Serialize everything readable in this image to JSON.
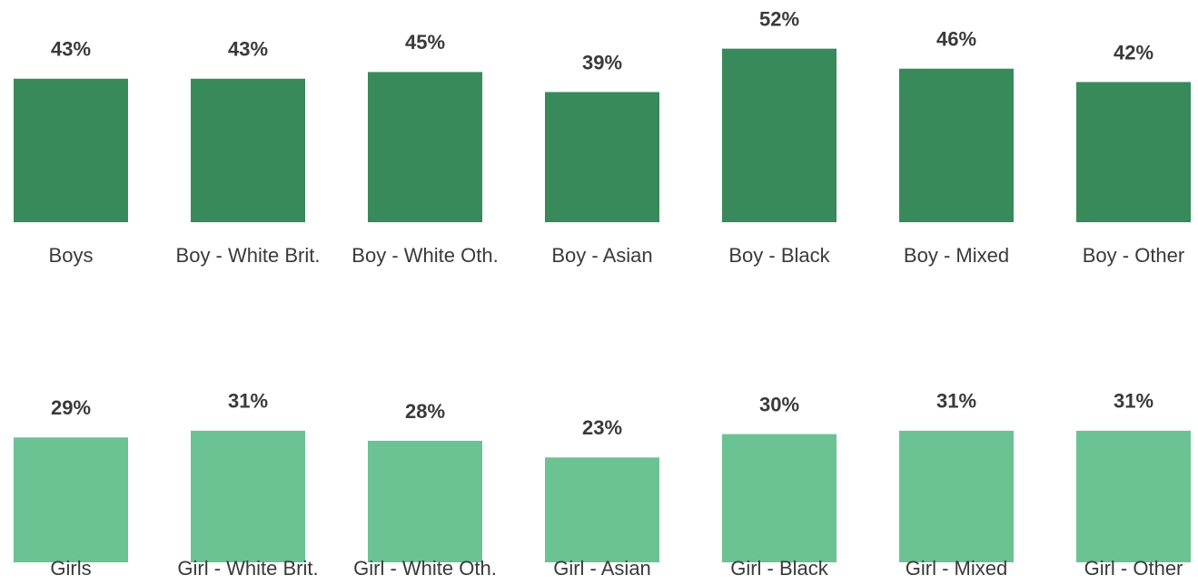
{
  "chart_data": [
    {
      "type": "bar",
      "categories": [
        "Boys",
        "Boy - White Brit.",
        "Boy - White Oth.",
        "Boy - Asian",
        "Boy - Black",
        "Boy - Mixed",
        "Boy - Other"
      ],
      "values": [
        43,
        43,
        45,
        39,
        52,
        46,
        42
      ],
      "value_labels": [
        "43%",
        "43%",
        "45%",
        "39%",
        "52%",
        "46%",
        "42%"
      ],
      "color": "#388a5a"
    },
    {
      "type": "bar",
      "categories": [
        "Girls",
        "Girl - White Brit.",
        "Girl - White Oth.",
        "Girl - Asian",
        "Girl - Black",
        "Girl - Mixed",
        "Girl - Other"
      ],
      "values": [
        29,
        31,
        28,
        23,
        30,
        31,
        31
      ],
      "value_labels": [
        "29%",
        "31%",
        "28%",
        "23%",
        "30%",
        "31%",
        "31%"
      ],
      "color": "#6bc293"
    }
  ]
}
